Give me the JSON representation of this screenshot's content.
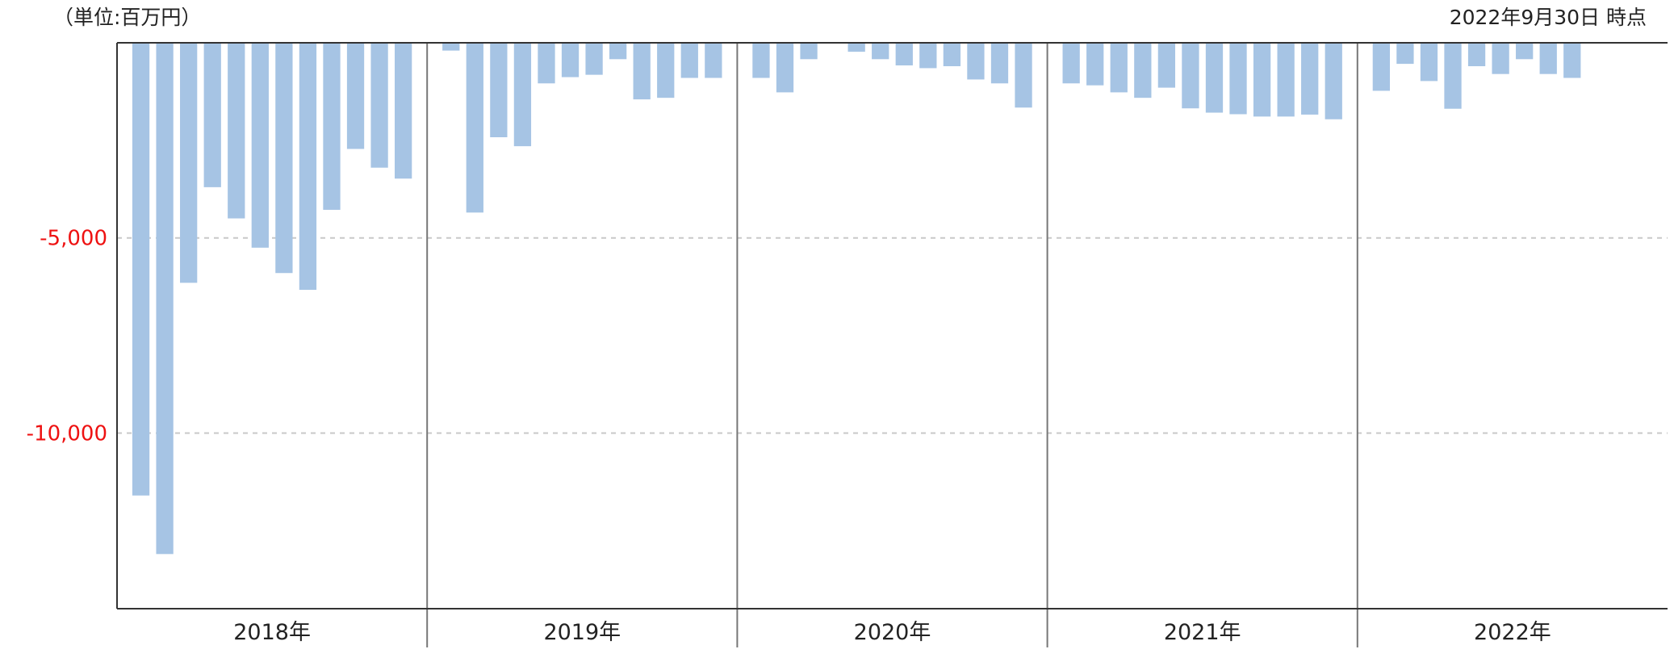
{
  "header": {
    "unit": "（単位:百万円）",
    "as_of": "2022年9月30日 時点"
  },
  "colors": {
    "bar": "#a6c4e4",
    "axis_tick_label": "#ee1111",
    "axis_line": "#333333",
    "year_divider": "#777777",
    "grid": "#c8c8c8"
  },
  "chart_data": {
    "type": "bar",
    "ylim": [
      -14500,
      0
    ],
    "yticks": [
      {
        "value": -5000,
        "label": "-5,000"
      },
      {
        "value": -10000,
        "label": "-10,000"
      }
    ],
    "grid": true,
    "groups": [
      {
        "label": "2018年",
        "values": [
          -11600,
          -13100,
          -6150,
          -3700,
          -4500,
          -5250,
          -5900,
          -6330,
          -4280,
          -2720,
          -3200,
          -3480
        ]
      },
      {
        "label": "2019年",
        "values": [
          -200,
          -4350,
          -2420,
          -2650,
          -1040,
          -880,
          -820,
          -420,
          -1450,
          -1410,
          -900,
          -900
        ]
      },
      {
        "label": "2020年",
        "values": [
          -900,
          -1270,
          -420,
          null,
          -230,
          -420,
          -580,
          -650,
          -600,
          -940,
          -1040,
          -1660
        ]
      },
      {
        "label": "2021年",
        "values": [
          -1040,
          -1090,
          -1270,
          -1410,
          -1150,
          -1680,
          -1790,
          -1830,
          -1890,
          -1890,
          -1840,
          -1960
        ]
      },
      {
        "label": "2022年",
        "values": [
          -1230,
          -540,
          -980,
          -1690,
          -600,
          -800,
          -420,
          -800,
          -900
        ]
      }
    ]
  }
}
